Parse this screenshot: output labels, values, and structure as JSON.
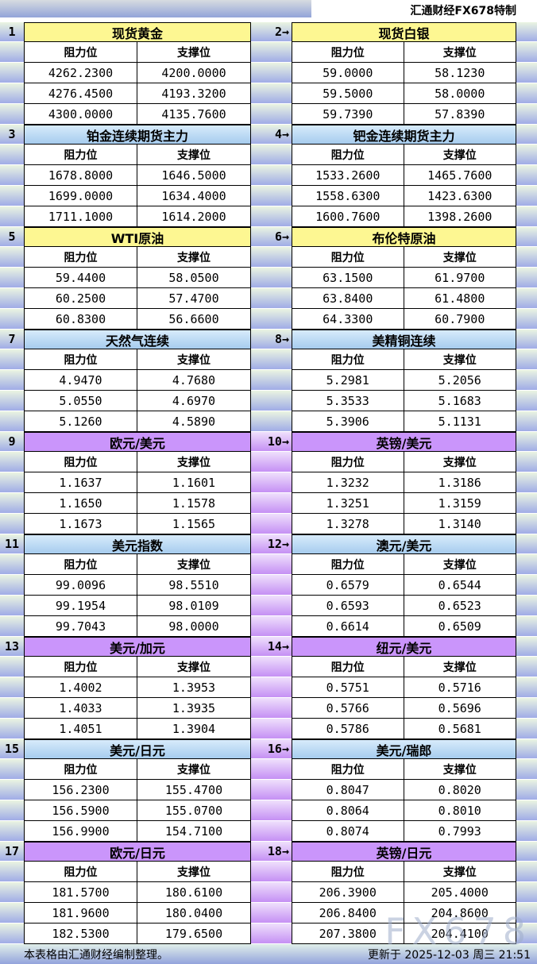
{
  "header": {
    "attribution": "汇通财经FX678特制"
  },
  "labels": {
    "resistance": "阻力位",
    "support": "支撑位"
  },
  "footer": {
    "note": "本表格由汇通财经编制整理。",
    "updated": "更新于 2025-12-03 周三 21:51"
  },
  "watermark": "FX678",
  "colors": {
    "yellow_header": "#fdf792",
    "blue_header": "#a6ccee",
    "purple_header": "#ca95fb",
    "band_blue": "#a0ace6",
    "band_purple": "#c590f4"
  },
  "sections": [
    {
      "gutter_theme": "green",
      "left": {
        "num": "1",
        "title": "现货黄金",
        "theme": "yellow",
        "rows": [
          [
            "4262.2300",
            "4200.0000"
          ],
          [
            "4276.4500",
            "4193.3200"
          ],
          [
            "4300.0000",
            "4135.7600"
          ]
        ]
      },
      "right": {
        "num": "2→",
        "title": "现货白银",
        "theme": "yellow",
        "rows": [
          [
            "59.0000",
            "58.1230"
          ],
          [
            "59.5000",
            "58.0000"
          ],
          [
            "59.7390",
            "57.8390"
          ]
        ]
      }
    },
    {
      "gutter_theme": "green",
      "left": {
        "num": "3",
        "title": "铂金连续期货主力",
        "theme": "blue",
        "rows": [
          [
            "1678.8000",
            "1646.5000"
          ],
          [
            "1699.0000",
            "1634.4000"
          ],
          [
            "1711.1000",
            "1614.2000"
          ]
        ]
      },
      "right": {
        "num": "4→",
        "title": "钯金连续期货主力",
        "theme": "blue",
        "rows": [
          [
            "1533.2600",
            "1465.7600"
          ],
          [
            "1558.6300",
            "1423.6300"
          ],
          [
            "1600.7600",
            "1398.2600"
          ]
        ]
      }
    },
    {
      "gutter_theme": "green",
      "left": {
        "num": "5",
        "title": "WTI原油",
        "theme": "yellow",
        "rows": [
          [
            "59.4400",
            "58.0500"
          ],
          [
            "60.2500",
            "57.4700"
          ],
          [
            "60.8300",
            "56.6600"
          ]
        ]
      },
      "right": {
        "num": "6→",
        "title": "布伦特原油",
        "theme": "yellow",
        "rows": [
          [
            "63.1500",
            "61.9700"
          ],
          [
            "63.8400",
            "61.4800"
          ],
          [
            "64.3300",
            "60.7900"
          ]
        ]
      }
    },
    {
      "gutter_theme": "green",
      "left": {
        "num": "7",
        "title": "天然气连续",
        "theme": "blue",
        "rows": [
          [
            "4.9470",
            "4.7680"
          ],
          [
            "5.0550",
            "4.6970"
          ],
          [
            "5.1260",
            "4.5890"
          ]
        ]
      },
      "right": {
        "num": "8→",
        "title": "美精铜连续",
        "theme": "blue",
        "rows": [
          [
            "5.2981",
            "5.2056"
          ],
          [
            "5.3533",
            "5.1683"
          ],
          [
            "5.3906",
            "5.1131"
          ]
        ]
      }
    },
    {
      "gutter_theme": "purple",
      "left": {
        "num": "9",
        "title": "欧元/美元",
        "theme": "purple",
        "rows": [
          [
            "1.1637",
            "1.1601"
          ],
          [
            "1.1650",
            "1.1578"
          ],
          [
            "1.1673",
            "1.1565"
          ]
        ]
      },
      "right": {
        "num": "10→",
        "title": "英镑/美元",
        "theme": "purple",
        "rows": [
          [
            "1.3232",
            "1.3186"
          ],
          [
            "1.3251",
            "1.3159"
          ],
          [
            "1.3278",
            "1.3140"
          ]
        ]
      }
    },
    {
      "gutter_theme": "purple",
      "left": {
        "num": "11",
        "title": "美元指数",
        "theme": "blue",
        "rows": [
          [
            "99.0096",
            "98.5510"
          ],
          [
            "99.1954",
            "98.0109"
          ],
          [
            "99.7043",
            "98.0000"
          ]
        ]
      },
      "right": {
        "num": "12→",
        "title": "澳元/美元",
        "theme": "blue",
        "rows": [
          [
            "0.6579",
            "0.6544"
          ],
          [
            "0.6593",
            "0.6523"
          ],
          [
            "0.6614",
            "0.6509"
          ]
        ]
      }
    },
    {
      "gutter_theme": "purple",
      "left": {
        "num": "13",
        "title": "美元/加元",
        "theme": "purple",
        "rows": [
          [
            "1.4002",
            "1.3953"
          ],
          [
            "1.4033",
            "1.3935"
          ],
          [
            "1.4051",
            "1.3904"
          ]
        ]
      },
      "right": {
        "num": "14→",
        "title": "纽元/美元",
        "theme": "purple",
        "rows": [
          [
            "0.5751",
            "0.5716"
          ],
          [
            "0.5766",
            "0.5696"
          ],
          [
            "0.5786",
            "0.5681"
          ]
        ]
      }
    },
    {
      "gutter_theme": "purple",
      "left": {
        "num": "15",
        "title": "美元/日元",
        "theme": "blue",
        "rows": [
          [
            "156.2300",
            "155.4700"
          ],
          [
            "156.5900",
            "155.0700"
          ],
          [
            "156.9900",
            "154.7100"
          ]
        ]
      },
      "right": {
        "num": "16→",
        "title": "美元/瑞郎",
        "theme": "blue",
        "rows": [
          [
            "0.8047",
            "0.8020"
          ],
          [
            "0.8064",
            "0.8010"
          ],
          [
            "0.8074",
            "0.7993"
          ]
        ]
      }
    },
    {
      "gutter_theme": "purple",
      "left": {
        "num": "17",
        "title": "欧元/日元",
        "theme": "purple",
        "rows": [
          [
            "181.5700",
            "180.6100"
          ],
          [
            "181.9600",
            "180.0400"
          ],
          [
            "182.5300",
            "179.6500"
          ]
        ]
      },
      "right": {
        "num": "18→",
        "title": "英镑/日元",
        "theme": "purple",
        "rows": [
          [
            "206.3900",
            "205.4000"
          ],
          [
            "206.8400",
            "204.8600"
          ],
          [
            "207.3800",
            "204.4100"
          ]
        ]
      }
    }
  ]
}
